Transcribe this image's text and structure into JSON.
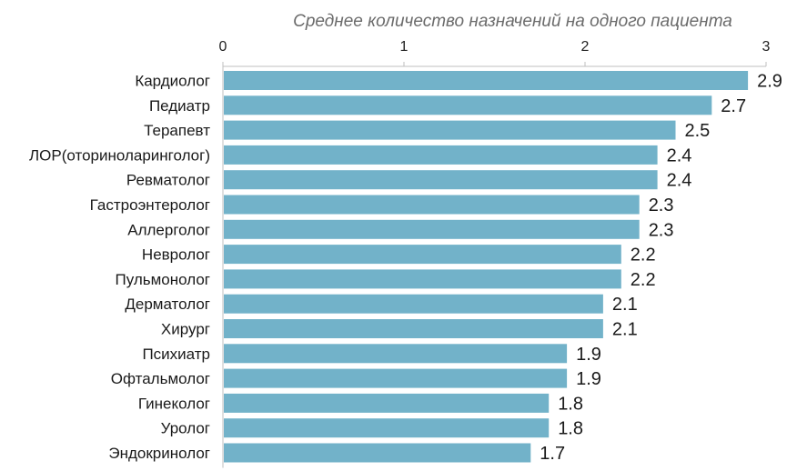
{
  "chart_data": {
    "type": "bar",
    "orientation": "horizontal",
    "title": "",
    "xlabel": "Среднее количество назначений на одного пациента",
    "ylabel": "",
    "xaxis_position": "top",
    "xlim": [
      0,
      3
    ],
    "xticks": [
      "0",
      "1",
      "2",
      "3"
    ],
    "grid": false,
    "legend": "none",
    "bar_color": "#72b2c9",
    "categories": [
      "Кардиолог",
      "Педиатр",
      "Терапевт",
      "ЛОР(оториноларинголог)",
      "Ревматолог",
      "Гастроэнтеролог",
      "Аллерголог",
      "Невролог",
      "Пульмонолог",
      "Дерматолог",
      "Хирург",
      "Психиатр",
      "Офтальмолог",
      "Гинеколог",
      "Уролог",
      "Эндокринолог"
    ],
    "values": [
      2.9,
      2.7,
      2.5,
      2.4,
      2.4,
      2.3,
      2.3,
      2.2,
      2.2,
      2.1,
      2.1,
      1.9,
      1.9,
      1.8,
      1.8,
      1.7
    ],
    "data_labels": [
      "2.9",
      "2.7",
      "2.5",
      "2.4",
      "2.4",
      "2.3",
      "2.3",
      "2.2",
      "2.2",
      "2.1",
      "2.1",
      "1.9",
      "1.9",
      "1.8",
      "1.8",
      "1.7"
    ]
  }
}
